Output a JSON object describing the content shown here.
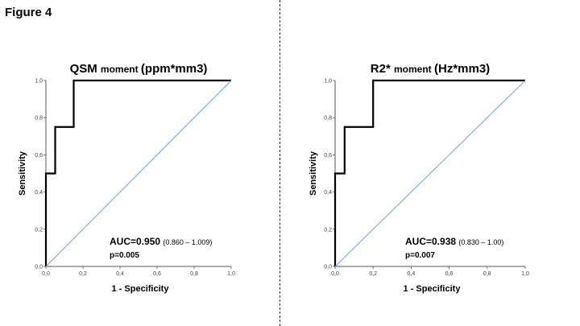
{
  "figure_label": "Figure 4",
  "chart_data": [
    {
      "type": "line",
      "title_main": "QSM",
      "title_small": "moment",
      "title_suffix": "(ppm*mm3)",
      "xlabel": "1 - Specificity",
      "ylabel": "Sensitivity",
      "xlim": [
        0,
        1
      ],
      "ylim": [
        0,
        1
      ],
      "xticks": [
        "0,0",
        "0,2",
        "0,4",
        "0,6",
        "0,8",
        "1,0"
      ],
      "yticks": [
        "0,0",
        "0,2",
        "0,4",
        "0,6",
        "0,8",
        "1,0"
      ],
      "series": [
        {
          "name": "ROC",
          "color": "#000000",
          "x": [
            0,
            0,
            0.05,
            0.05,
            0.15,
            0.15,
            1.0
          ],
          "y": [
            0,
            0.5,
            0.5,
            0.75,
            0.75,
            1.0,
            1.0
          ]
        },
        {
          "name": "reference",
          "color": "#6fa3d4",
          "x": [
            0,
            1
          ],
          "y": [
            0,
            1
          ]
        }
      ],
      "auc_label": "AUC=0.950",
      "auc_ci": "(0.860 – 1.009)",
      "p_label": "p=0.005"
    },
    {
      "type": "line",
      "title_main": "R2*",
      "title_small": "moment",
      "title_suffix": "(Hz*mm3)",
      "xlabel": "1 - Specificity",
      "ylabel": "Sensitivity",
      "xlim": [
        0,
        1
      ],
      "ylim": [
        0,
        1
      ],
      "xticks": [
        "0,0",
        "0,2",
        "0,4",
        "0,6",
        "0,8",
        "1,0"
      ],
      "yticks": [
        "0,0",
        "0,2",
        "0,4",
        "0,6",
        "0,8",
        "1,0"
      ],
      "series": [
        {
          "name": "ROC",
          "color": "#000000",
          "x": [
            0,
            0,
            0.05,
            0.05,
            0.2,
            0.2,
            1.0
          ],
          "y": [
            0,
            0.5,
            0.5,
            0.75,
            0.75,
            1.0,
            1.0
          ]
        },
        {
          "name": "reference",
          "color": "#6fa3d4",
          "x": [
            0,
            1
          ],
          "y": [
            0,
            1
          ]
        }
      ],
      "auc_label": "AUC=0.938",
      "auc_ci": "(0.830 – 1.00)",
      "p_label": "p=0.007"
    }
  ]
}
